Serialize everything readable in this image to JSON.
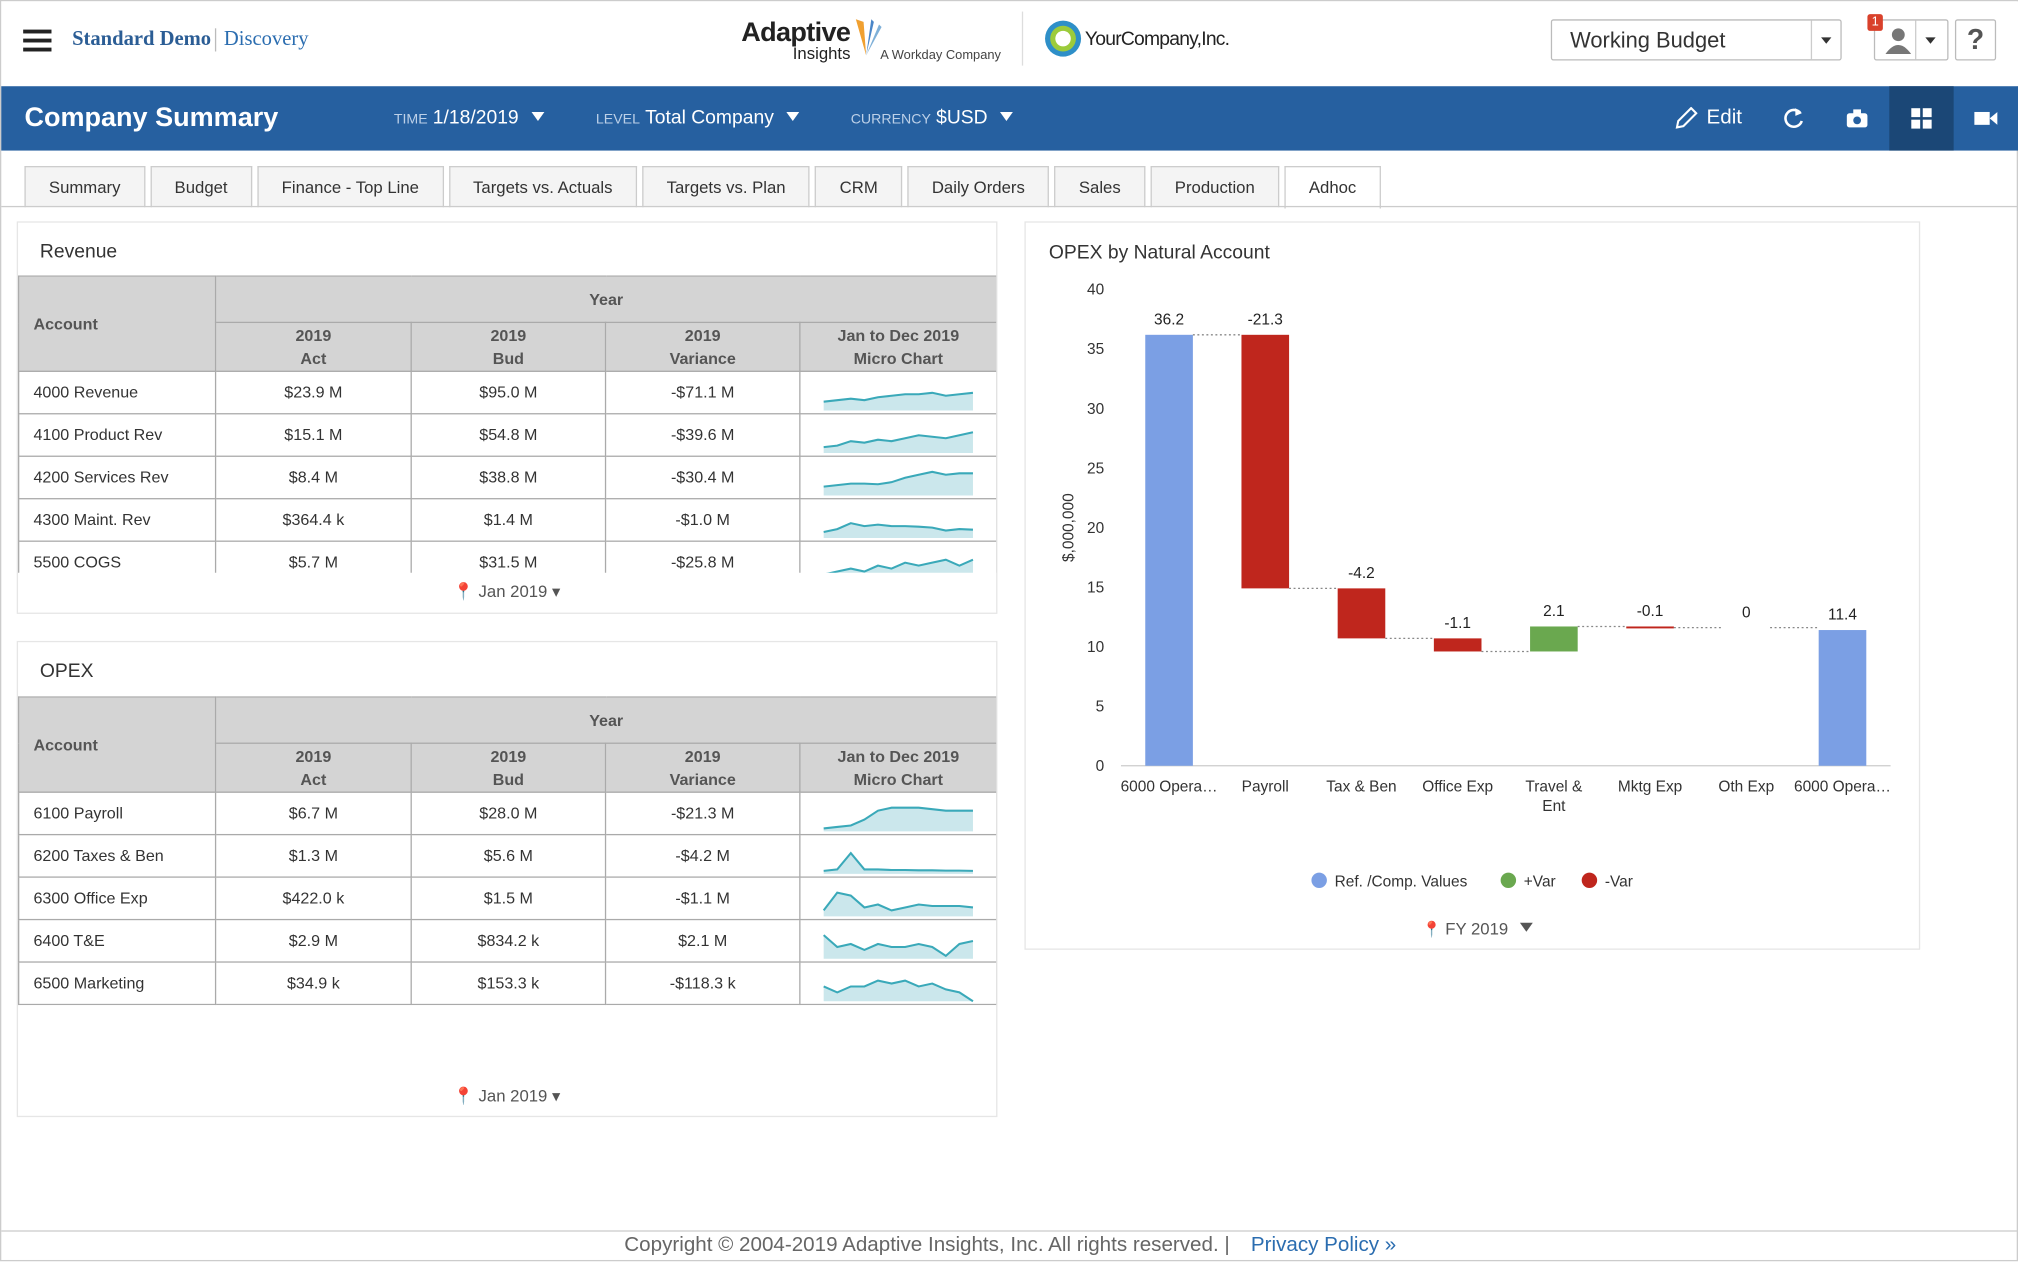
{
  "header": {
    "brand": "Standard Demo",
    "module": "Discovery",
    "logo_name": "Adaptive",
    "logo_sub": "Insights",
    "logo_tag": "A Workday Company",
    "company": "YourCompany,Inc.",
    "budget": "Working Budget",
    "badge": "1",
    "help": "?"
  },
  "toolbar": {
    "title": "Company Summary",
    "filters": [
      {
        "label": "TIME",
        "value": "1/18/2019"
      },
      {
        "label": "LEVEL",
        "value": "Total Company"
      },
      {
        "label": "CURRENCY",
        "value": "$USD"
      }
    ],
    "edit": "Edit"
  },
  "tabs": [
    "Summary",
    "Budget",
    "Finance - Top Line",
    "Targets vs. Actuals",
    "Targets vs. Plan",
    "CRM",
    "Daily Orders",
    "Sales",
    "Production",
    "Adhoc"
  ],
  "revenue": {
    "title": "Revenue",
    "account": "Account",
    "group": "Year",
    "columns": [
      {
        "top": "2019",
        "bottom": "Act"
      },
      {
        "top": "2019",
        "bottom": "Bud"
      },
      {
        "top": "2019",
        "bottom": "Variance"
      },
      {
        "top": "Jan to Dec 2019",
        "bottom": "Micro Chart"
      }
    ],
    "rows": [
      {
        "account": "4000 Revenue",
        "act": "$23.9 M",
        "bud": "$95.0 M",
        "variance": "-$71.1 M",
        "spark": [
          3,
          3.5,
          4,
          3.5,
          4.5,
          5,
          5.5,
          5.5,
          6,
          5,
          5.5,
          6
        ]
      },
      {
        "account": "4100 Product Rev",
        "act": "$15.1 M",
        "bud": "$54.8 M",
        "variance": "-$39.6 M",
        "spark": [
          2,
          2.5,
          4,
          3.5,
          4.5,
          4,
          5,
          6,
          5.5,
          5,
          6,
          7
        ]
      },
      {
        "account": "4200 Services Rev",
        "act": "$8.4 M",
        "bud": "$38.8 M",
        "variance": "-$30.4 M",
        "spark": [
          3,
          3.5,
          4,
          4,
          3.8,
          4.5,
          6,
          7,
          8,
          7,
          7.5,
          7.5
        ]
      },
      {
        "account": "4300 Maint. Rev",
        "act": "$364.4 k",
        "bud": "$1.4 M",
        "variance": "-$1.0 M",
        "spark": [
          2,
          3,
          5,
          4,
          4.5,
          4,
          4,
          3.8,
          3.5,
          2.5,
          3,
          2.8
        ]
      },
      {
        "account": "5500 COGS",
        "act": "$5.7 M",
        "bud": "$31.5 M",
        "variance": "-$25.8 M",
        "spark": [
          2,
          3,
          4,
          3,
          5,
          4,
          6,
          5,
          6,
          7,
          5,
          7
        ]
      }
    ],
    "period": "Jan 2019"
  },
  "opex": {
    "title": "OPEX",
    "account": "Account",
    "group": "Year",
    "columns": [
      {
        "top": "2019",
        "bottom": "Act"
      },
      {
        "top": "2019",
        "bottom": "Bud"
      },
      {
        "top": "2019",
        "bottom": "Variance"
      },
      {
        "top": "Jan to Dec 2019",
        "bottom": "Micro Chart"
      }
    ],
    "rows": [
      {
        "account": "6100 Payroll",
        "act": "$6.7 M",
        "bud": "$28.0 M",
        "variance": "-$21.3 M",
        "spark": [
          1,
          1.5,
          2,
          4,
          7,
          8,
          8,
          8,
          7.5,
          7,
          7,
          7
        ]
      },
      {
        "account": "6200 Taxes & Ben",
        "act": "$1.3 M",
        "bud": "$5.6 M",
        "variance": "-$4.2 M",
        "spark": [
          1,
          1.5,
          7,
          1.5,
          1.5,
          1.3,
          1.3,
          1.2,
          1.2,
          1.1,
          1.1,
          1
        ]
      },
      {
        "account": "6300 Office Exp",
        "act": "$422.0 k",
        "bud": "$1.5 M",
        "variance": "-$1.1 M",
        "spark": [
          2,
          8,
          7,
          3,
          4,
          2,
          3,
          4,
          3.5,
          3.5,
          3.5,
          3
        ]
      },
      {
        "account": "6400 T&E",
        "act": "$2.9 M",
        "bud": "$834.2 k",
        "variance": "$2.1 M",
        "spark": [
          8,
          4,
          5,
          3,
          5,
          4,
          4,
          5,
          4,
          1,
          5,
          6
        ]
      },
      {
        "account": "6500 Marketing",
        "act": "$34.9 k",
        "bud": "$153.3 k",
        "variance": "-$118.3 k",
        "spark": [
          5,
          3,
          5,
          5,
          7,
          6,
          7,
          5,
          6,
          4,
          3,
          0
        ]
      }
    ],
    "period": "Jan 2019"
  },
  "chart_data": {
    "type": "waterfall",
    "title": "OPEX by Natural Account",
    "ylabel": "$,000,000",
    "categories": [
      "6000 Opera…",
      "Payroll",
      "Tax & Ben",
      "Office Exp",
      "Travel & Ent",
      "Mktg Exp",
      "Oth Exp",
      "6000 Opera…"
    ],
    "values": [
      36.2,
      -21.3,
      -4.2,
      -1.1,
      2.1,
      -0.1,
      0,
      11.4
    ],
    "ylim": [
      0,
      40
    ],
    "yticks": [
      0,
      5,
      10,
      15,
      20,
      25,
      30,
      35,
      40
    ],
    "legend": [
      {
        "name": "Ref. /Comp. Values",
        "color": "#7b9fe4"
      },
      {
        "name": "+Var",
        "color": "#6aa84f"
      },
      {
        "name": "-Var",
        "color": "#bf261d"
      }
    ],
    "period": "FY 2019"
  },
  "footer": {
    "copyright": "Copyright © 2004-2019 Adaptive Insights, Inc. All rights reserved.  |",
    "link": "Privacy Policy »"
  }
}
